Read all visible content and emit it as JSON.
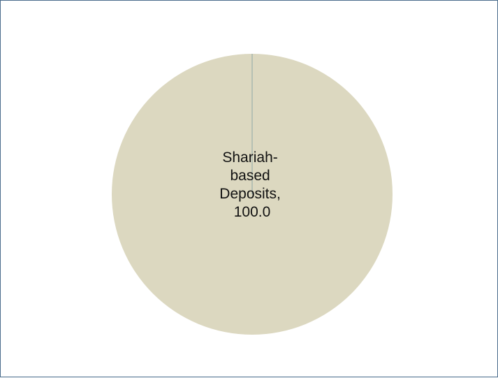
{
  "chart_data": {
    "type": "pie",
    "title": "",
    "slices": [
      {
        "label": "Shariah-based Deposits",
        "value": 100.0,
        "color": "#dcd8c0",
        "data_label_lines": [
          "Shariah-",
          "based",
          "Deposits,",
          "100.0"
        ]
      },
      {
        "label": "",
        "value": 0.0,
        "color": "#8fa8a8"
      }
    ],
    "legend": "none",
    "divider_color": "#8fa8a8"
  }
}
